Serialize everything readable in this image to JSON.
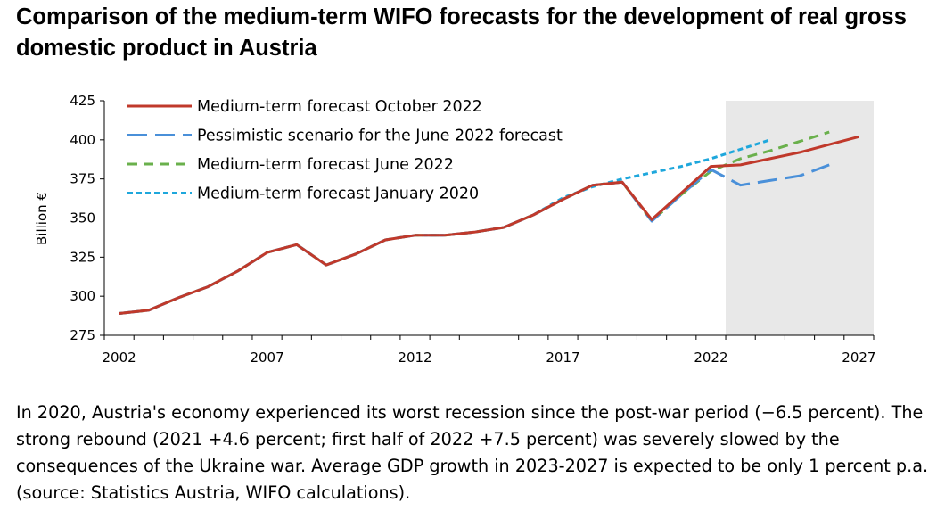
{
  "title": "Comparison of the medium-term WIFO forecasts for the development of real gross domestic product in Austria",
  "caption": "In 2020, Austria's economy experienced its worst recession since the post-war period (−6.5 percent). The strong rebound (2021 +4.6 percent; first half of 2022 +7.5 percent) was severely slowed by the consequences of the Ukraine war. Average GDP growth in 2023-2027 is expected to be only 1 percent p.a. (source: Statistics Austria, WIFO calculations).",
  "colors": {
    "oct2022": "#c0392b",
    "pessimistic": "#4a90d9",
    "jun2022": "#6ab04c",
    "jan2020": "#1ea7dc",
    "forecast_band": "#e8e8e8"
  },
  "chart_data": {
    "type": "line",
    "ylabel": "Billion €",
    "xlabel": "",
    "xlim": [
      2001.5,
      2027.5
    ],
    "ylim": [
      275,
      425
    ],
    "yticks": [
      275,
      300,
      325,
      350,
      375,
      400,
      425
    ],
    "xticks": [
      2002,
      2007,
      2012,
      2017,
      2022,
      2027
    ],
    "forecast_shading": [
      2022.5,
      2027.5
    ],
    "grid": false,
    "legend_position": "top-left",
    "series": [
      {
        "name": "Medium-term forecast October 2022",
        "style": "solid",
        "color": "#c0392b",
        "x": [
          2002,
          2003,
          2004,
          2005,
          2006,
          2007,
          2008,
          2009,
          2010,
          2011,
          2012,
          2013,
          2014,
          2015,
          2016,
          2017,
          2018,
          2019,
          2020,
          2021,
          2022,
          2023,
          2024,
          2025,
          2026,
          2027
        ],
        "y": [
          289,
          291,
          299,
          306,
          316,
          328,
          333,
          320,
          327,
          336,
          339,
          339,
          341,
          344,
          352,
          362,
          371,
          373,
          349,
          366,
          383,
          384,
          388,
          392,
          397,
          402
        ]
      },
      {
        "name": "Pessimistic scenario for the June 2022 forecast",
        "style": "long-dash",
        "color": "#4a90d9",
        "x": [
          2002,
          2003,
          2004,
          2005,
          2006,
          2007,
          2008,
          2009,
          2010,
          2011,
          2012,
          2013,
          2014,
          2015,
          2016,
          2017,
          2018,
          2019,
          2020,
          2021,
          2022,
          2023,
          2024,
          2025,
          2026
        ],
        "y": [
          289,
          291,
          299,
          306,
          316,
          328,
          333,
          320,
          327,
          336,
          339,
          339,
          341,
          344,
          352,
          362,
          371,
          373,
          348,
          365,
          381,
          371,
          374,
          377,
          384
        ]
      },
      {
        "name": "Medium-term forecast June 2022",
        "style": "dash",
        "color": "#6ab04c",
        "x": [
          2002,
          2003,
          2004,
          2005,
          2006,
          2007,
          2008,
          2009,
          2010,
          2011,
          2012,
          2013,
          2014,
          2015,
          2016,
          2017,
          2018,
          2019,
          2020,
          2021,
          2022,
          2023,
          2024,
          2025,
          2026
        ],
        "y": [
          289,
          291,
          299,
          306,
          316,
          328,
          333,
          320,
          327,
          336,
          339,
          339,
          341,
          344,
          352,
          362,
          371,
          373,
          348,
          365,
          380,
          388,
          393,
          399,
          405
        ]
      },
      {
        "name": "Medium-term forecast January 2020",
        "style": "dot",
        "color": "#1ea7dc",
        "x": [
          2002,
          2003,
          2004,
          2005,
          2006,
          2007,
          2008,
          2009,
          2010,
          2011,
          2012,
          2013,
          2014,
          2015,
          2016,
          2017,
          2018,
          2019,
          2020,
          2021,
          2022,
          2023,
          2024
        ],
        "y": [
          289,
          291,
          299,
          306,
          316,
          328,
          333,
          320,
          327,
          336,
          339,
          339,
          341,
          344,
          352,
          363,
          370,
          375,
          379,
          383,
          388,
          394,
          400
        ]
      }
    ]
  }
}
